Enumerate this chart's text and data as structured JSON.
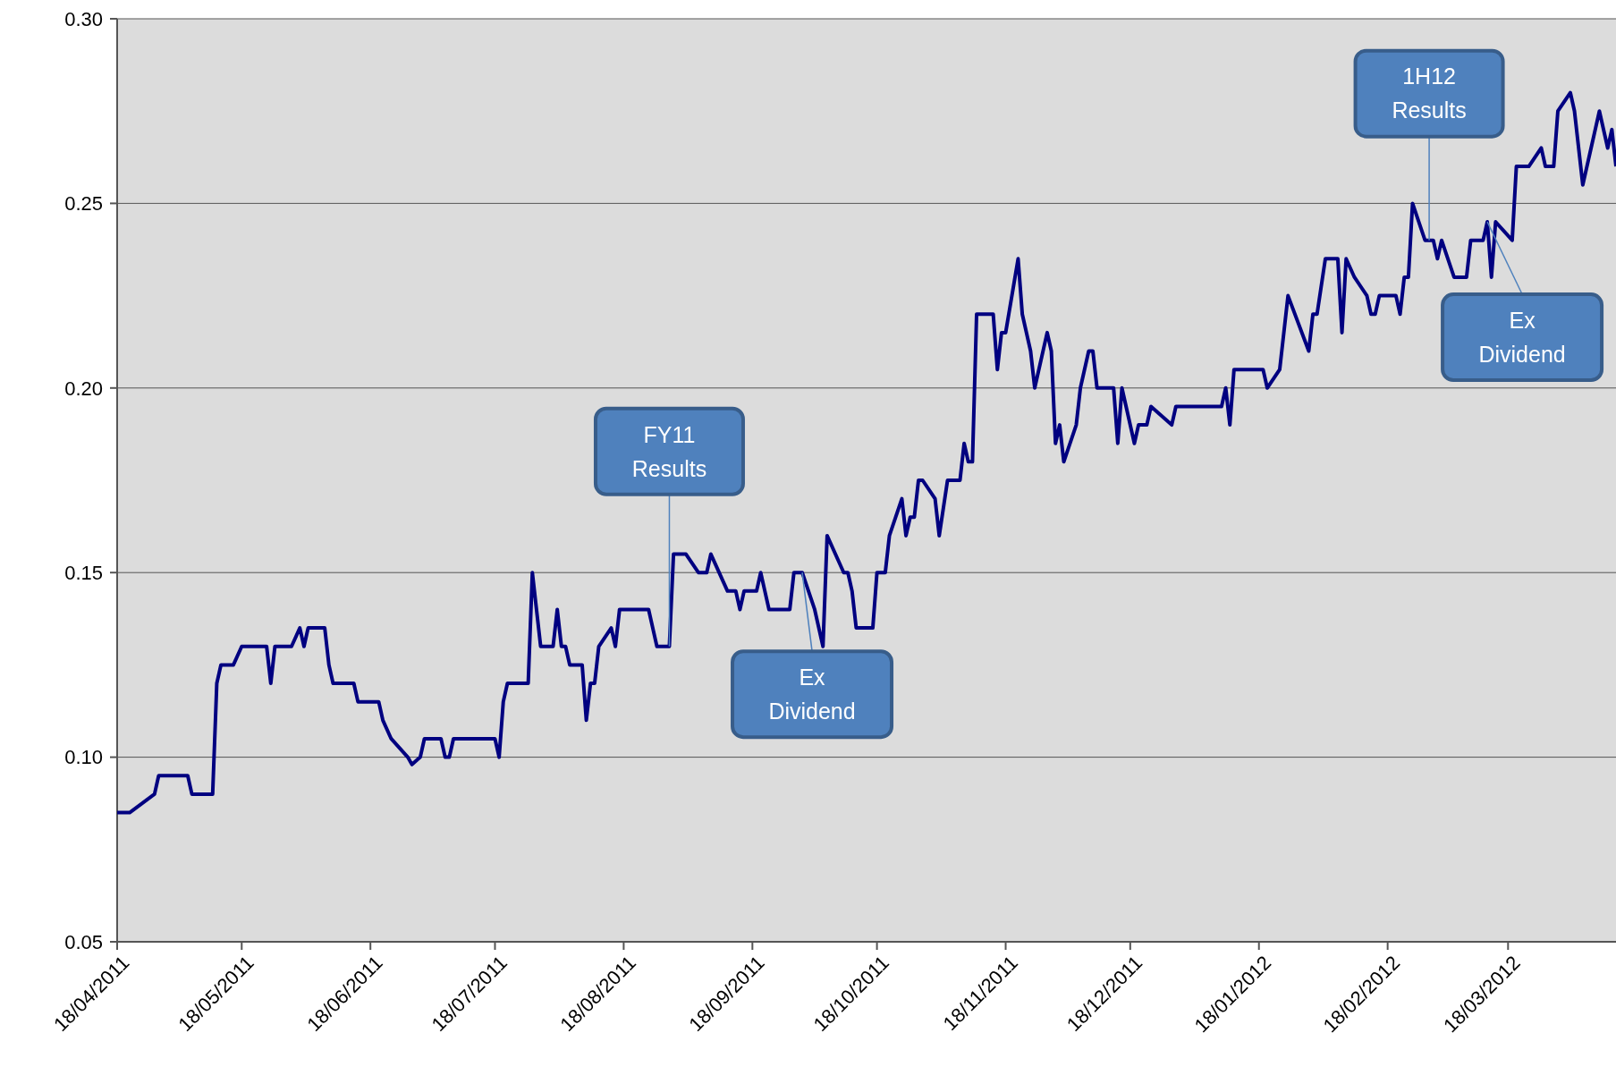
{
  "chart_data": {
    "type": "line",
    "x": [
      "2011-04-18",
      "2011-04-21",
      "2011-04-27",
      "2011-04-28",
      "2011-05-05",
      "2011-05-06",
      "2011-05-11",
      "2011-05-12",
      "2011-05-13",
      "2011-05-16",
      "2011-05-18",
      "2011-05-24",
      "2011-05-25",
      "2011-05-26",
      "2011-05-30",
      "2011-06-01",
      "2011-06-02",
      "2011-06-03",
      "2011-06-07",
      "2011-06-08",
      "2011-06-09",
      "2011-06-14",
      "2011-06-15",
      "2011-06-20",
      "2011-06-21",
      "2011-06-23",
      "2011-06-27",
      "2011-06-28",
      "2011-06-30",
      "2011-07-01",
      "2011-07-05",
      "2011-07-06",
      "2011-07-07",
      "2011-07-08",
      "2011-07-18",
      "2011-07-19",
      "2011-07-20",
      "2011-07-21",
      "2011-07-26",
      "2011-07-27",
      "2011-07-28",
      "2011-07-29",
      "2011-08-01",
      "2011-08-02",
      "2011-08-03",
      "2011-08-04",
      "2011-08-05",
      "2011-08-08",
      "2011-08-09",
      "2011-08-10",
      "2011-08-11",
      "2011-08-12",
      "2011-08-15",
      "2011-08-16",
      "2011-08-17",
      "2011-08-24",
      "2011-08-25",
      "2011-08-26",
      "2011-08-29",
      "2011-08-30",
      "2011-09-02",
      "2011-09-05",
      "2011-09-07",
      "2011-09-08",
      "2011-09-12",
      "2011-09-14",
      "2011-09-15",
      "2011-09-16",
      "2011-09-19",
      "2011-09-20",
      "2011-09-21",
      "2011-09-22",
      "2011-09-27",
      "2011-09-28",
      "2011-09-30",
      "2011-10-03",
      "2011-10-05",
      "2011-10-06",
      "2011-10-10",
      "2011-10-11",
      "2011-10-12",
      "2011-10-13",
      "2011-10-17",
      "2011-10-18",
      "2011-10-20",
      "2011-10-21",
      "2011-10-24",
      "2011-10-25",
      "2011-10-26",
      "2011-10-27",
      "2011-10-28",
      "2011-10-29",
      "2011-11-01",
      "2011-11-02",
      "2011-11-04",
      "2011-11-07",
      "2011-11-08",
      "2011-11-09",
      "2011-11-10",
      "2011-11-11",
      "2011-11-15",
      "2011-11-16",
      "2011-11-17",
      "2011-11-18",
      "2011-11-21",
      "2011-11-22",
      "2011-11-24",
      "2011-11-25",
      "2011-11-28",
      "2011-11-29",
      "2011-11-30",
      "2011-12-01",
      "2011-12-02",
      "2011-12-05",
      "2011-12-06",
      "2011-12-08",
      "2011-12-09",
      "2011-12-10",
      "2011-12-14",
      "2011-12-15",
      "2011-12-16",
      "2011-12-19",
      "2011-12-20",
      "2011-12-22",
      "2011-12-23",
      "2011-12-28",
      "2011-12-29",
      "2012-01-09",
      "2012-01-10",
      "2012-01-11",
      "2012-01-12",
      "2012-01-19",
      "2012-01-20",
      "2012-01-23",
      "2012-01-25",
      "2012-01-30",
      "2012-01-31",
      "2012-02-01",
      "2012-02-03",
      "2012-02-06",
      "2012-02-07",
      "2012-02-08",
      "2012-02-10",
      "2012-02-13",
      "2012-02-14",
      "2012-02-15",
      "2012-02-16",
      "2012-02-20",
      "2012-02-21",
      "2012-02-22",
      "2012-02-23",
      "2012-02-24",
      "2012-02-27",
      "2012-02-29",
      "2012-03-01",
      "2012-03-02",
      "2012-03-05",
      "2012-03-08",
      "2012-03-09",
      "2012-03-12",
      "2012-03-13",
      "2012-03-14",
      "2012-03-15",
      "2012-03-19",
      "2012-03-20",
      "2012-03-23",
      "2012-03-26",
      "2012-03-27",
      "2012-03-29",
      "2012-03-30",
      "2012-04-02",
      "2012-04-03",
      "2012-04-05",
      "2012-04-09",
      "2012-04-11",
      "2012-04-12",
      "2012-04-13"
    ],
    "series": [
      {
        "color": "#000080",
        "values": [
          0.085,
          0.085,
          0.09,
          0.095,
          0.095,
          0.09,
          0.09,
          0.12,
          0.125,
          0.125,
          0.13,
          0.13,
          0.12,
          0.13,
          0.13,
          0.135,
          0.13,
          0.135,
          0.135,
          0.125,
          0.12,
          0.12,
          0.115,
          0.115,
          0.11,
          0.105,
          0.1,
          0.098,
          0.1,
          0.105,
          0.105,
          0.1,
          0.1,
          0.105,
          0.105,
          0.1,
          0.115,
          0.12,
          0.12,
          0.15,
          0.14,
          0.13,
          0.13,
          0.14,
          0.13,
          0.13,
          0.125,
          0.125,
          0.11,
          0.12,
          0.12,
          0.13,
          0.135,
          0.13,
          0.14,
          0.14,
          0.135,
          0.13,
          0.13,
          0.155,
          0.155,
          0.15,
          0.15,
          0.155,
          0.145,
          0.145,
          0.14,
          0.145,
          0.145,
          0.15,
          0.145,
          0.14,
          0.14,
          0.15,
          0.15,
          0.14,
          0.13,
          0.16,
          0.15,
          0.15,
          0.145,
          0.135,
          0.135,
          0.15,
          0.15,
          0.16,
          0.17,
          0.16,
          0.165,
          0.165,
          0.175,
          0.175,
          0.17,
          0.16,
          0.175,
          0.175,
          0.185,
          0.18,
          0.18,
          0.22,
          0.22,
          0.205,
          0.215,
          0.215,
          0.235,
          0.22,
          0.21,
          0.2,
          0.215,
          0.21,
          0.185,
          0.19,
          0.18,
          0.19,
          0.2,
          0.21,
          0.21,
          0.2,
          0.2,
          0.185,
          0.2,
          0.185,
          0.19,
          0.19,
          0.195,
          0.19,
          0.195,
          0.195,
          0.2,
          0.19,
          0.205,
          0.205,
          0.2,
          0.205,
          0.225,
          0.21,
          0.22,
          0.22,
          0.235,
          0.235,
          0.215,
          0.235,
          0.23,
          0.225,
          0.22,
          0.22,
          0.225,
          0.225,
          0.22,
          0.23,
          0.23,
          0.25,
          0.24,
          0.24,
          0.235,
          0.24,
          0.23,
          0.23,
          0.24,
          0.24,
          0.245,
          0.23,
          0.245,
          0.24,
          0.26,
          0.26,
          0.265,
          0.26,
          0.26,
          0.275,
          0.28,
          0.275,
          0.255,
          0.275,
          0.265,
          0.27,
          0.26
        ]
      }
    ],
    "xlim": [
      "2011-04-18",
      "2012-04-13"
    ],
    "xticks": [
      {
        "value": "2011-04-18",
        "label": "18/04/2011"
      },
      {
        "value": "2011-05-18",
        "label": "18/05/2011"
      },
      {
        "value": "2011-06-18",
        "label": "18/06/2011"
      },
      {
        "value": "2011-07-18",
        "label": "18/07/2011"
      },
      {
        "value": "2011-08-18",
        "label": "18/08/2011"
      },
      {
        "value": "2011-09-18",
        "label": "18/09/2011"
      },
      {
        "value": "2011-10-18",
        "label": "18/10/2011"
      },
      {
        "value": "2011-11-18",
        "label": "18/11/2011"
      },
      {
        "value": "2011-12-18",
        "label": "18/12/2011"
      },
      {
        "value": "2012-01-18",
        "label": "18/01/2012"
      },
      {
        "value": "2012-02-18",
        "label": "18/02/2012"
      },
      {
        "value": "2012-03-18",
        "label": "18/03/2012"
      }
    ],
    "ylim": [
      0.05,
      0.3
    ],
    "yticks": [
      {
        "value": 0.05,
        "label": "0.05"
      },
      {
        "value": 0.1,
        "label": "0.10"
      },
      {
        "value": 0.15,
        "label": "0.15"
      },
      {
        "value": 0.2,
        "label": "0.20"
      },
      {
        "value": 0.25,
        "label": "0.25"
      },
      {
        "value": 0.3,
        "label": "0.30"
      }
    ],
    "grid": "y",
    "marker": "none",
    "line_style": "solid",
    "annotations": [
      {
        "text": "FY11 Results",
        "x": "2011-08-29",
        "y": 0.13
      },
      {
        "text": "Ex Dividend",
        "x": "2011-09-30",
        "y": 0.15
      },
      {
        "text": "1H12 Results",
        "x": "2012-02-28",
        "y": 0.24
      },
      {
        "text": "Ex Dividend",
        "x": "2012-03-13",
        "y": 0.245
      }
    ]
  }
}
